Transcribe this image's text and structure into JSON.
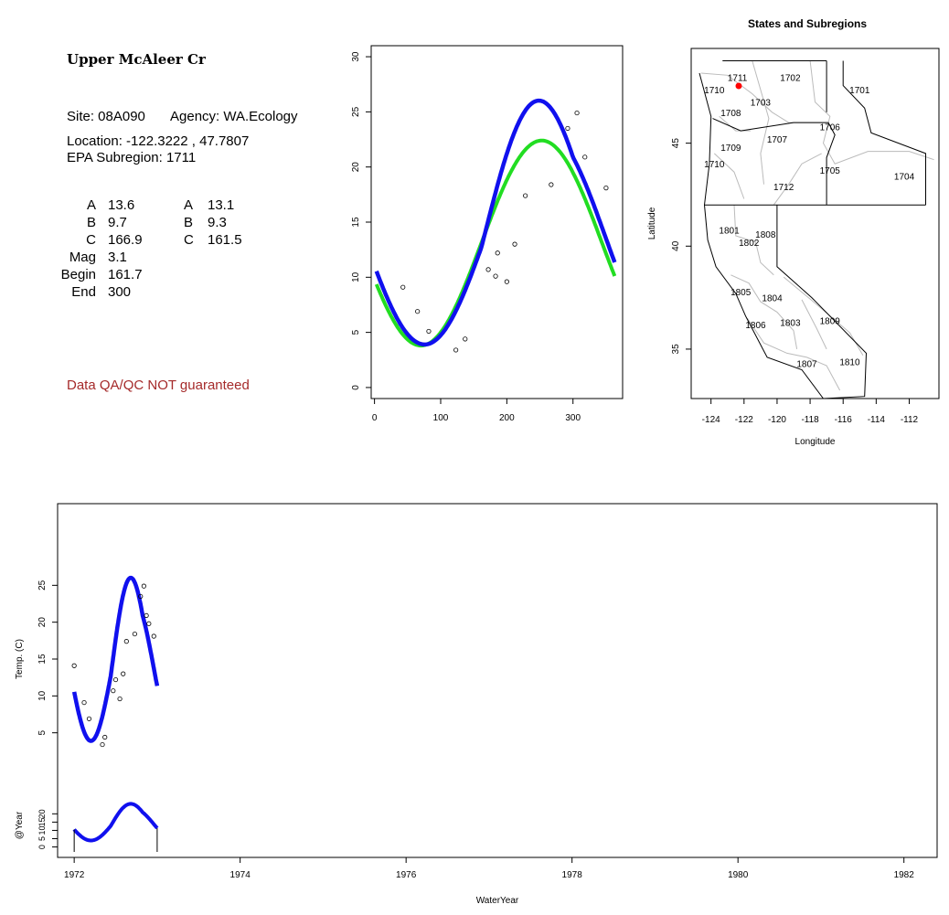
{
  "info": {
    "title": "Upper McAleer Cr",
    "site": "Site: 08A090",
    "agency": "Agency: WA.Ecology",
    "location": "Location: -122.3222 , 47.7807",
    "subregion": "EPA Subregion: 1711",
    "params_left": [
      {
        "label": "A",
        "value": "13.6"
      },
      {
        "label": "B",
        "value": "9.7"
      },
      {
        "label": "C",
        "value": "166.9"
      },
      {
        "label": "Mag",
        "value": "3.1"
      },
      {
        "label": "Begin",
        "value": "161.7"
      },
      {
        "label": "End",
        "value": "300"
      }
    ],
    "params_right": [
      {
        "label": "A",
        "value": "13.1"
      },
      {
        "label": "B",
        "value": "9.3"
      },
      {
        "label": "C",
        "value": "161.5"
      }
    ],
    "qa_note": "Data QA/QC NOT guaranteed",
    "qa_color": "#a52a2a"
  },
  "chart_data": [
    {
      "type": "scatter",
      "title": "",
      "xlabel": "",
      "ylabel": "",
      "xlim": [
        -5,
        375
      ],
      "ylim": [
        -1,
        31
      ],
      "xticks": [
        0,
        100,
        200,
        300
      ],
      "yticks": [
        0,
        5,
        10,
        15,
        20,
        25,
        30
      ],
      "points": {
        "x": [
          43,
          65,
          82,
          123,
          137,
          172,
          183,
          186,
          200,
          212,
          228,
          267,
          292,
          306,
          318,
          350
        ],
        "y": [
          9.1,
          6.9,
          5.1,
          3.4,
          4.4,
          10.7,
          10.1,
          12.2,
          9.6,
          13.0,
          17.4,
          18.4,
          23.5,
          24.9,
          20.9,
          18.1
        ]
      },
      "series": [
        {
          "color": "#22dd22",
          "fit": {
            "A": 13.1,
            "B": 9.3,
            "C": 161.5
          }
        },
        {
          "color": "#1010ee",
          "fit": {
            "A": 13.6,
            "B": 9.7,
            "C": 166.9,
            "Mag": 3.1,
            "Begin": 161.7,
            "End": 300
          }
        }
      ]
    },
    {
      "type": "map",
      "title": "States and Subregions",
      "xlabel": "Longitude",
      "ylabel": "Latitude",
      "xlim": [
        -125.2,
        -110.2
      ],
      "ylim": [
        32.6,
        49.6
      ],
      "xticks": [
        -124,
        -122,
        -120,
        -118,
        -116,
        -114,
        -112
      ],
      "yticks": [
        35,
        40,
        45
      ],
      "site": {
        "lon": -122.3222,
        "lat": 47.7807,
        "color": "#ff0000"
      },
      "region_labels": [
        {
          "text": "1702",
          "lon": -119.2,
          "lat": 48.2
        },
        {
          "text": "1701",
          "lon": -115.0,
          "lat": 47.6
        },
        {
          "text": "1711",
          "lon": -122.4,
          "lat": 48.2
        },
        {
          "text": "1710",
          "lon": -123.8,
          "lat": 47.6
        },
        {
          "text": "1703",
          "lon": -121.0,
          "lat": 47.0
        },
        {
          "text": "1708",
          "lon": -122.8,
          "lat": 46.5
        },
        {
          "text": "1706",
          "lon": -116.8,
          "lat": 45.8
        },
        {
          "text": "1707",
          "lon": -120.0,
          "lat": 45.2
        },
        {
          "text": "1709",
          "lon": -122.8,
          "lat": 44.8
        },
        {
          "text": "1710",
          "lon": -123.8,
          "lat": 44.0
        },
        {
          "text": "1705",
          "lon": -116.8,
          "lat": 43.7
        },
        {
          "text": "1704",
          "lon": -112.3,
          "lat": 43.4
        },
        {
          "text": "1712",
          "lon": -119.6,
          "lat": 42.9
        },
        {
          "text": "1801",
          "lon": -122.9,
          "lat": 40.8
        },
        {
          "text": "1808",
          "lon": -120.7,
          "lat": 40.6
        },
        {
          "text": "1802",
          "lon": -121.7,
          "lat": 40.2
        },
        {
          "text": "1805",
          "lon": -122.2,
          "lat": 37.8
        },
        {
          "text": "1804",
          "lon": -120.3,
          "lat": 37.5
        },
        {
          "text": "1806",
          "lon": -121.3,
          "lat": 36.2
        },
        {
          "text": "1803",
          "lon": -119.2,
          "lat": 36.3
        },
        {
          "text": "1809",
          "lon": -116.8,
          "lat": 36.4
        },
        {
          "text": "1807",
          "lon": -118.2,
          "lat": 34.3
        },
        {
          "text": "1810",
          "lon": -115.6,
          "lat": 34.4
        }
      ]
    },
    {
      "type": "line",
      "title": "",
      "xlabel": "WaterYear",
      "ylabel": "Temp. (C)",
      "ylabel2": "@Year",
      "xlim": [
        1971.8,
        1982.4
      ],
      "xticks": [
        1972,
        1974,
        1976,
        1978,
        1980,
        1982
      ],
      "ylim": [
        0,
        30
      ],
      "yticks": [
        5,
        10,
        15,
        20,
        25
      ],
      "ylim2": [
        -3,
        29
      ],
      "yticks2": [
        0,
        5,
        10,
        15,
        20
      ],
      "series_color": "#1010ee",
      "points": {
        "x": [
          1972.0,
          1972.12,
          1972.18,
          1972.34,
          1972.37,
          1972.47,
          1972.5,
          1972.55,
          1972.59,
          1972.63,
          1972.73,
          1972.8,
          1972.84,
          1972.87,
          1972.9,
          1972.96
        ],
        "y": [
          14.1,
          9.1,
          6.9,
          3.4,
          4.4,
          10.7,
          12.2,
          9.6,
          13.0,
          17.4,
          18.4,
          23.5,
          24.9,
          20.9,
          19.8,
          18.1
        ]
      }
    }
  ]
}
